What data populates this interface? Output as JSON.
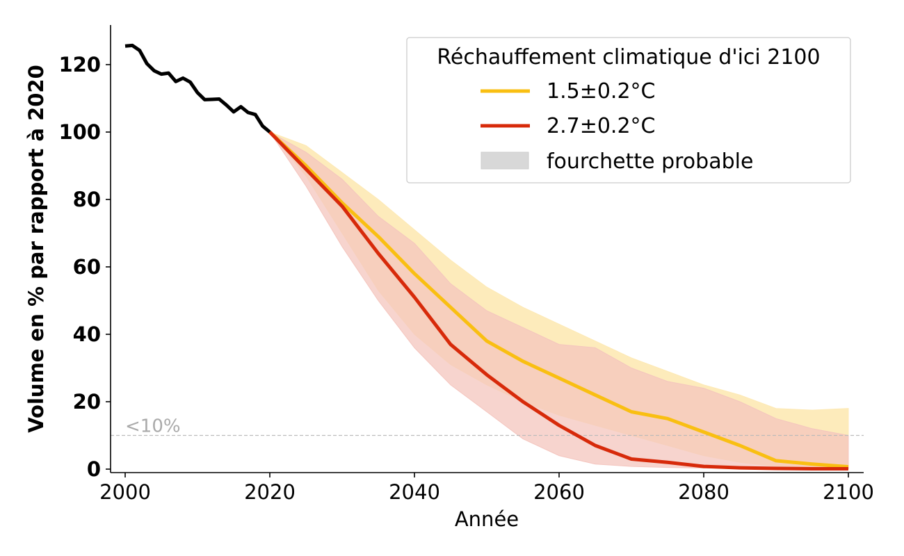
{
  "chart_data": {
    "type": "line",
    "xlabel": "Année",
    "ylabel": "Volume en % par rapport à 2020",
    "xlim": [
      1998,
      2102
    ],
    "ylim": [
      0,
      130
    ],
    "xticks": [
      2000,
      2020,
      2040,
      2060,
      2080,
      2100
    ],
    "yticks": [
      0,
      20,
      40,
      60,
      80,
      100,
      120
    ],
    "threshold": {
      "y": 10,
      "label": "<10%",
      "color": "#bbbbbb"
    },
    "legend": {
      "title": "Réchauffement climatique d'ici 2100",
      "position": "top-right",
      "entries": [
        "1.5±0.2°C",
        "2.7±0.2°C",
        "fourchette probable"
      ]
    },
    "historical": {
      "color": "#000000",
      "x": [
        2000,
        2001,
        2002,
        2003,
        2004,
        2005,
        2006,
        2007,
        2008,
        2009,
        2010,
        2011,
        2012,
        2013,
        2014,
        2015,
        2016,
        2017,
        2018,
        2019,
        2020
      ],
      "y": [
        125.5,
        125.7,
        124.2,
        120.3,
        118.2,
        117.2,
        117.5,
        115.0,
        116.0,
        114.8,
        111.7,
        109.6,
        109.7,
        109.8,
        108.0,
        106.0,
        107.5,
        105.8,
        105.2,
        101.8,
        100.0
      ]
    },
    "series": [
      {
        "name": "1.5±0.2°C",
        "color": "#f9bf12",
        "band_color": "#fde9b4",
        "x": [
          2020,
          2025,
          2030,
          2035,
          2040,
          2045,
          2050,
          2055,
          2060,
          2065,
          2070,
          2075,
          2080,
          2085,
          2090,
          2095,
          2100
        ],
        "y": [
          100,
          90,
          79,
          69,
          58,
          48,
          38,
          32,
          27,
          22,
          17,
          15,
          11,
          7,
          2.5,
          1.5,
          0.7
        ],
        "low": [
          100,
          87,
          70,
          53,
          40,
          31,
          25,
          20,
          16,
          13,
          10,
          7,
          4,
          2,
          0.8,
          0.4,
          0.2
        ],
        "high": [
          100,
          96,
          88,
          80,
          71,
          62,
          54,
          48,
          43,
          38,
          33,
          29,
          25,
          22,
          18,
          17.5,
          18
        ]
      },
      {
        "name": "2.7±0.2°C",
        "color": "#d72a0a",
        "band_color": "#f4c5be",
        "x": [
          2020,
          2025,
          2030,
          2035,
          2040,
          2045,
          2050,
          2055,
          2060,
          2065,
          2070,
          2075,
          2080,
          2085,
          2090,
          2095,
          2100
        ],
        "y": [
          100,
          89,
          78,
          64,
          51,
          37,
          28,
          20,
          13,
          7,
          3,
          2,
          0.8,
          0.4,
          0.2,
          0.1,
          0.1
        ],
        "low": [
          100,
          84,
          66,
          50,
          36,
          25,
          17,
          9,
          4,
          1.5,
          0.8,
          0.5,
          0.3,
          0.2,
          0.1,
          0.1,
          0.1
        ],
        "high": [
          100,
          94,
          86,
          75,
          67,
          55,
          47,
          42,
          37,
          36,
          30,
          26,
          24,
          20,
          15,
          12,
          10
        ]
      }
    ]
  }
}
